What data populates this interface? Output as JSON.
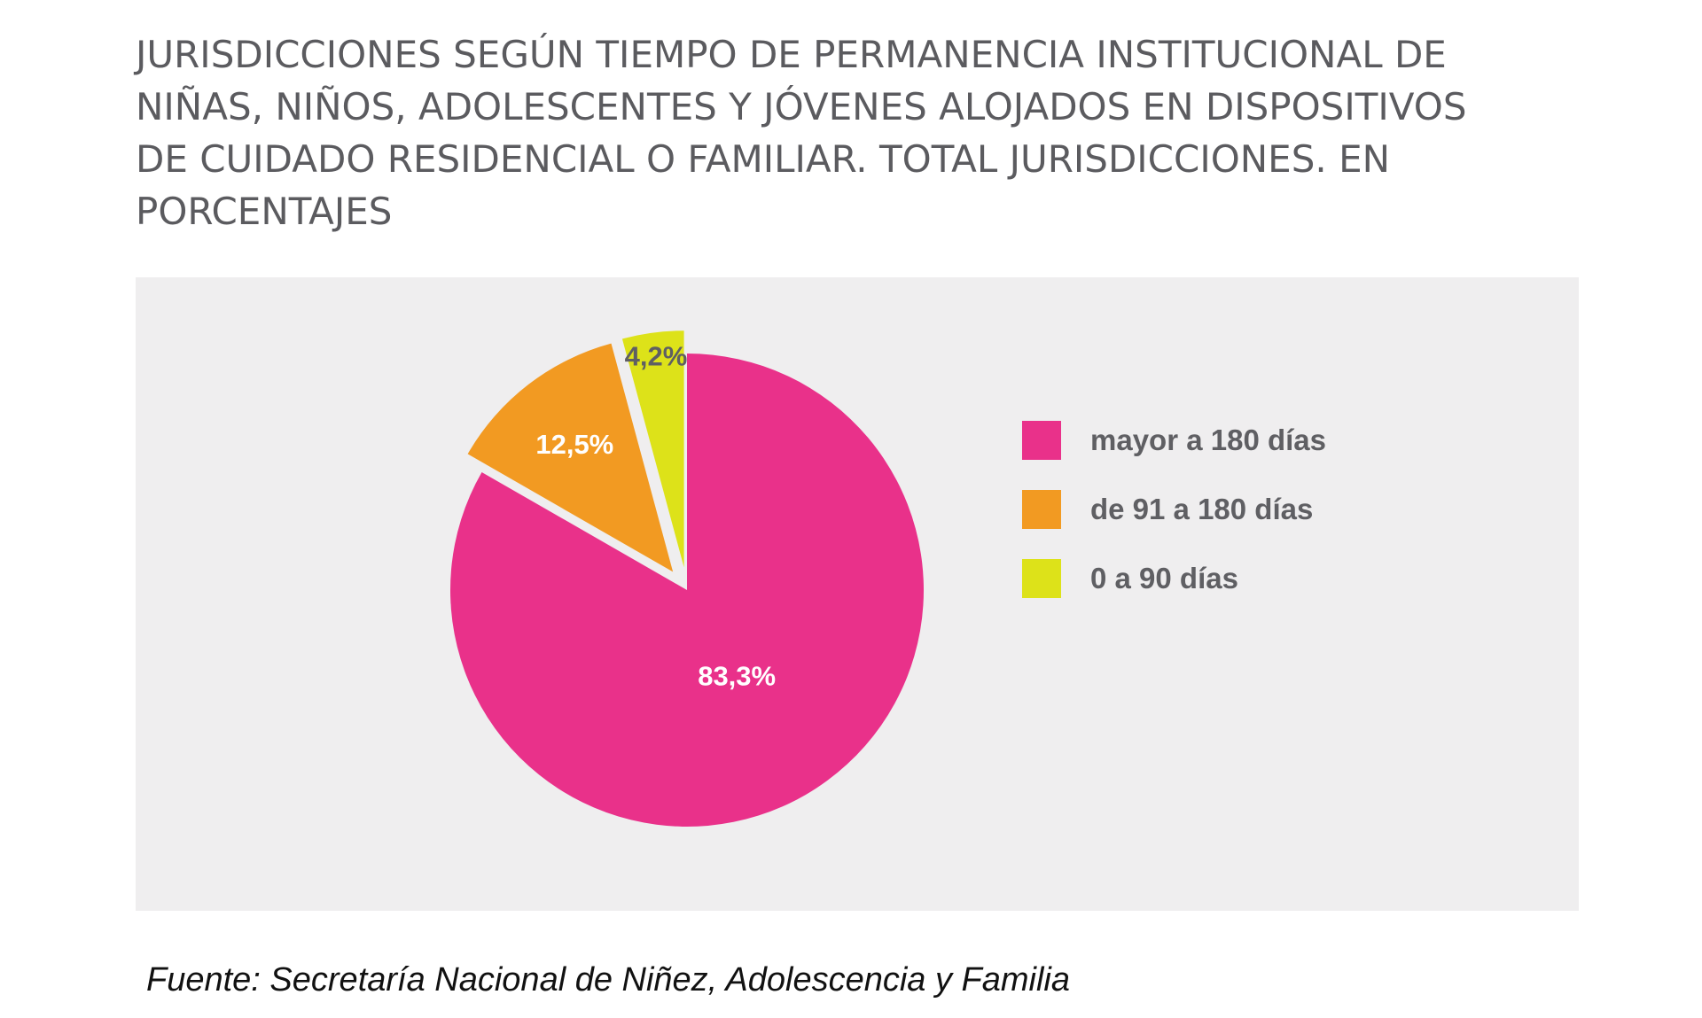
{
  "title": "JURISDICCIONES SEGÚN TIEMPO DE PERMANENCIA INSTITUCIONAL DE NIÑAS, NIÑOS, ADOLESCENTES Y JÓVENES ALOJADOS EN DISPOSITIVOS DE CUIDADO RESIDENCIAL O FAMILIAR. TOTAL JURISDICCIONES. EN PORCENTAJES",
  "source": "Fuente: Secretaría Nacional de Niñez, Adolescencia y Familia",
  "chart_data": {
    "type": "pie",
    "title": "JURISDICCIONES SEGÚN TIEMPO DE PERMANENCIA INSTITUCIONAL DE NIÑAS, NIÑOS, ADOLESCENTES Y JÓVENES ALOJADOS EN DISPOSITIVOS DE CUIDADO RESIDENCIAL O FAMILIAR. TOTAL JURISDICCIONES. EN PORCENTAJES",
    "categories": [
      "mayor a 180 días",
      "de 91 a 180 días",
      "0 a 90 días"
    ],
    "values": [
      83.3,
      12.5,
      4.2
    ],
    "labels": [
      "83,3%",
      "12,5%",
      "4,2%"
    ],
    "colors": [
      "#e9318a",
      "#f29a22",
      "#dde219"
    ],
    "label_colors": [
      "#ffffff",
      "#ffffff",
      "#5f5f63"
    ],
    "exploded": [
      false,
      true,
      true
    ],
    "legend_position": "right"
  }
}
